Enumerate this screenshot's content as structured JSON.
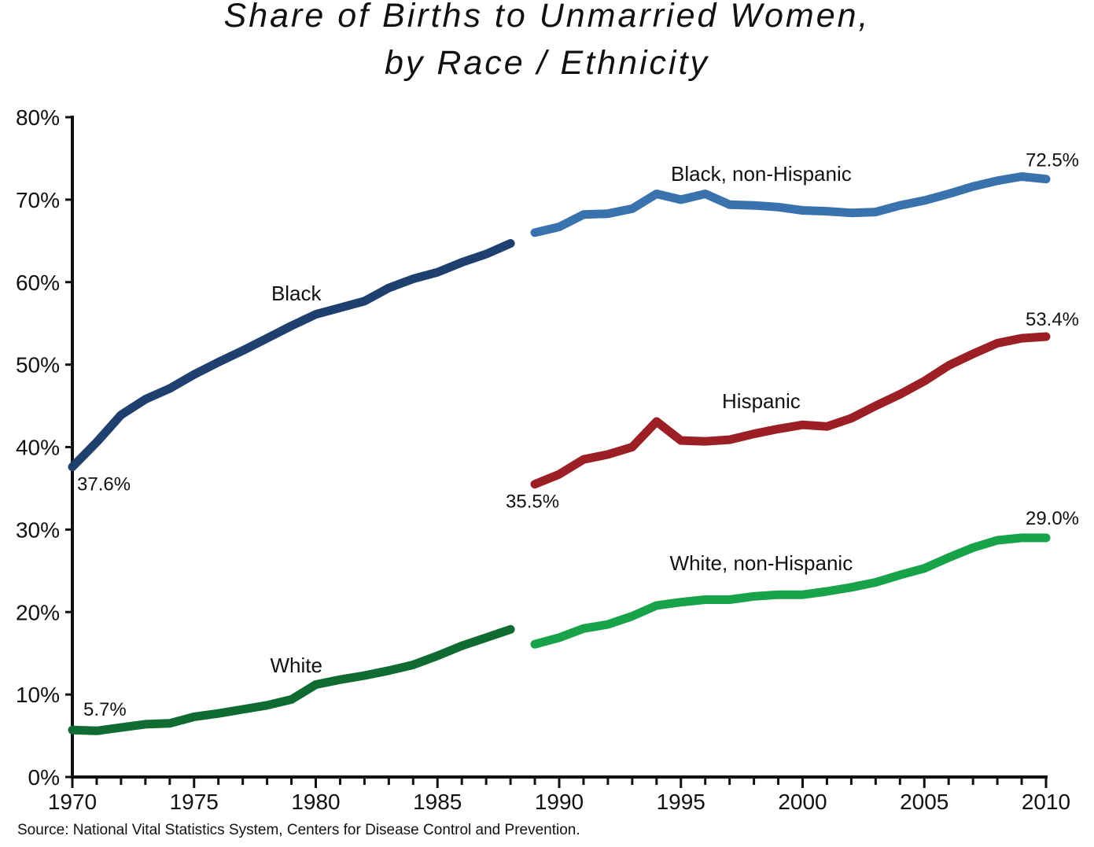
{
  "title_line1": "Share of Births to Unmarried Women,",
  "title_line2": "by Race / Ethnicity",
  "source": "Source: National Vital Statistics System, Centers for Disease Control and Prevention.",
  "chart_data": {
    "type": "line",
    "title": "Share of Births to Unmarried Women, by Race / Ethnicity",
    "xlabel": "",
    "ylabel": "",
    "xlim": [
      1970,
      2010
    ],
    "ylim": [
      0,
      80
    ],
    "y_ticks": [
      0,
      10,
      20,
      30,
      40,
      50,
      60,
      70,
      80
    ],
    "y_tick_labels": [
      "0%",
      "10%",
      "20%",
      "30%",
      "40%",
      "50%",
      "60%",
      "70%",
      "80%"
    ],
    "x_ticks": [
      1970,
      1975,
      1980,
      1985,
      1990,
      1995,
      2000,
      2005,
      2010
    ],
    "x_tick_labels": [
      "1970",
      "1975",
      "1980",
      "1985",
      "1990",
      "1995",
      "2000",
      "2005",
      "2010"
    ],
    "grid": false,
    "legend": "none (direct labels)",
    "series": [
      {
        "name": "Black",
        "color": "#1f3f6e",
        "x": [
          1970,
          1971,
          1972,
          1973,
          1974,
          1975,
          1976,
          1977,
          1978,
          1979,
          1980,
          1981,
          1982,
          1983,
          1984,
          1985,
          1986,
          1987,
          1988
        ],
        "values": [
          37.6,
          40.6,
          43.9,
          45.8,
          47.1,
          48.8,
          50.3,
          51.7,
          53.2,
          54.7,
          56.1,
          56.9,
          57.7,
          59.3,
          60.4,
          61.2,
          62.4,
          63.4,
          64.7
        ]
      },
      {
        "name": "Black, non-Hispanic",
        "color": "#3a72ad",
        "x": [
          1989,
          1990,
          1991,
          1992,
          1993,
          1994,
          1995,
          1996,
          1997,
          1998,
          1999,
          2000,
          2001,
          2002,
          2003,
          2004,
          2005,
          2006,
          2007,
          2008,
          2009,
          2010
        ],
        "values": [
          66.0,
          66.7,
          68.2,
          68.3,
          68.9,
          70.7,
          70.0,
          70.7,
          69.4,
          69.3,
          69.1,
          68.7,
          68.6,
          68.4,
          68.5,
          69.3,
          69.9,
          70.7,
          71.6,
          72.3,
          72.8,
          72.5
        ]
      },
      {
        "name": "Hispanic",
        "color": "#9b1f25",
        "x": [
          1989,
          1990,
          1991,
          1992,
          1993,
          1994,
          1995,
          1996,
          1997,
          1998,
          1999,
          2000,
          2001,
          2002,
          2003,
          2004,
          2005,
          2006,
          2007,
          2008,
          2009,
          2010
        ],
        "values": [
          35.5,
          36.7,
          38.5,
          39.1,
          40.0,
          43.1,
          40.8,
          40.7,
          40.9,
          41.6,
          42.2,
          42.7,
          42.5,
          43.5,
          45.0,
          46.4,
          48.0,
          49.9,
          51.3,
          52.6,
          53.2,
          53.4
        ]
      },
      {
        "name": "White",
        "color": "#0f6b32",
        "x": [
          1970,
          1971,
          1972,
          1973,
          1974,
          1975,
          1976,
          1977,
          1978,
          1979,
          1980,
          1981,
          1982,
          1983,
          1984,
          1985,
          1986,
          1987,
          1988
        ],
        "values": [
          5.7,
          5.6,
          6.0,
          6.4,
          6.5,
          7.3,
          7.7,
          8.2,
          8.7,
          9.4,
          11.2,
          11.8,
          12.3,
          12.9,
          13.6,
          14.7,
          15.9,
          16.9,
          17.9
        ]
      },
      {
        "name": "White, non-Hispanic",
        "color": "#18a34a",
        "x": [
          1989,
          1990,
          1991,
          1992,
          1993,
          1994,
          1995,
          1996,
          1997,
          1998,
          1999,
          2000,
          2001,
          2002,
          2003,
          2004,
          2005,
          2006,
          2007,
          2008,
          2009,
          2010
        ],
        "values": [
          16.1,
          16.9,
          18.0,
          18.5,
          19.5,
          20.8,
          21.2,
          21.5,
          21.5,
          21.9,
          22.1,
          22.1,
          22.5,
          23.0,
          23.6,
          24.5,
          25.3,
          26.6,
          27.8,
          28.7,
          29.0,
          29.0
        ]
      }
    ],
    "series_labels": [
      {
        "text": "Black",
        "series": "Black"
      },
      {
        "text": "Black, non-Hispanic",
        "series": "Black, non-Hispanic"
      },
      {
        "text": "Hispanic",
        "series": "Hispanic"
      },
      {
        "text": "White",
        "series": "White"
      },
      {
        "text": "White, non-Hispanic",
        "series": "White, non-Hispanic"
      }
    ],
    "annotations": [
      {
        "text": "37.6%",
        "series": "Black",
        "year": 1970
      },
      {
        "text": "72.5%",
        "series": "Black, non-Hispanic",
        "year": 2010
      },
      {
        "text": "35.5%",
        "series": "Hispanic",
        "year": 1989
      },
      {
        "text": "53.4%",
        "series": "Hispanic",
        "year": 2010
      },
      {
        "text": "5.7%",
        "series": "White",
        "year": 1970
      },
      {
        "text": "29.0%",
        "series": "White, non-Hispanic",
        "year": 2010
      }
    ]
  }
}
